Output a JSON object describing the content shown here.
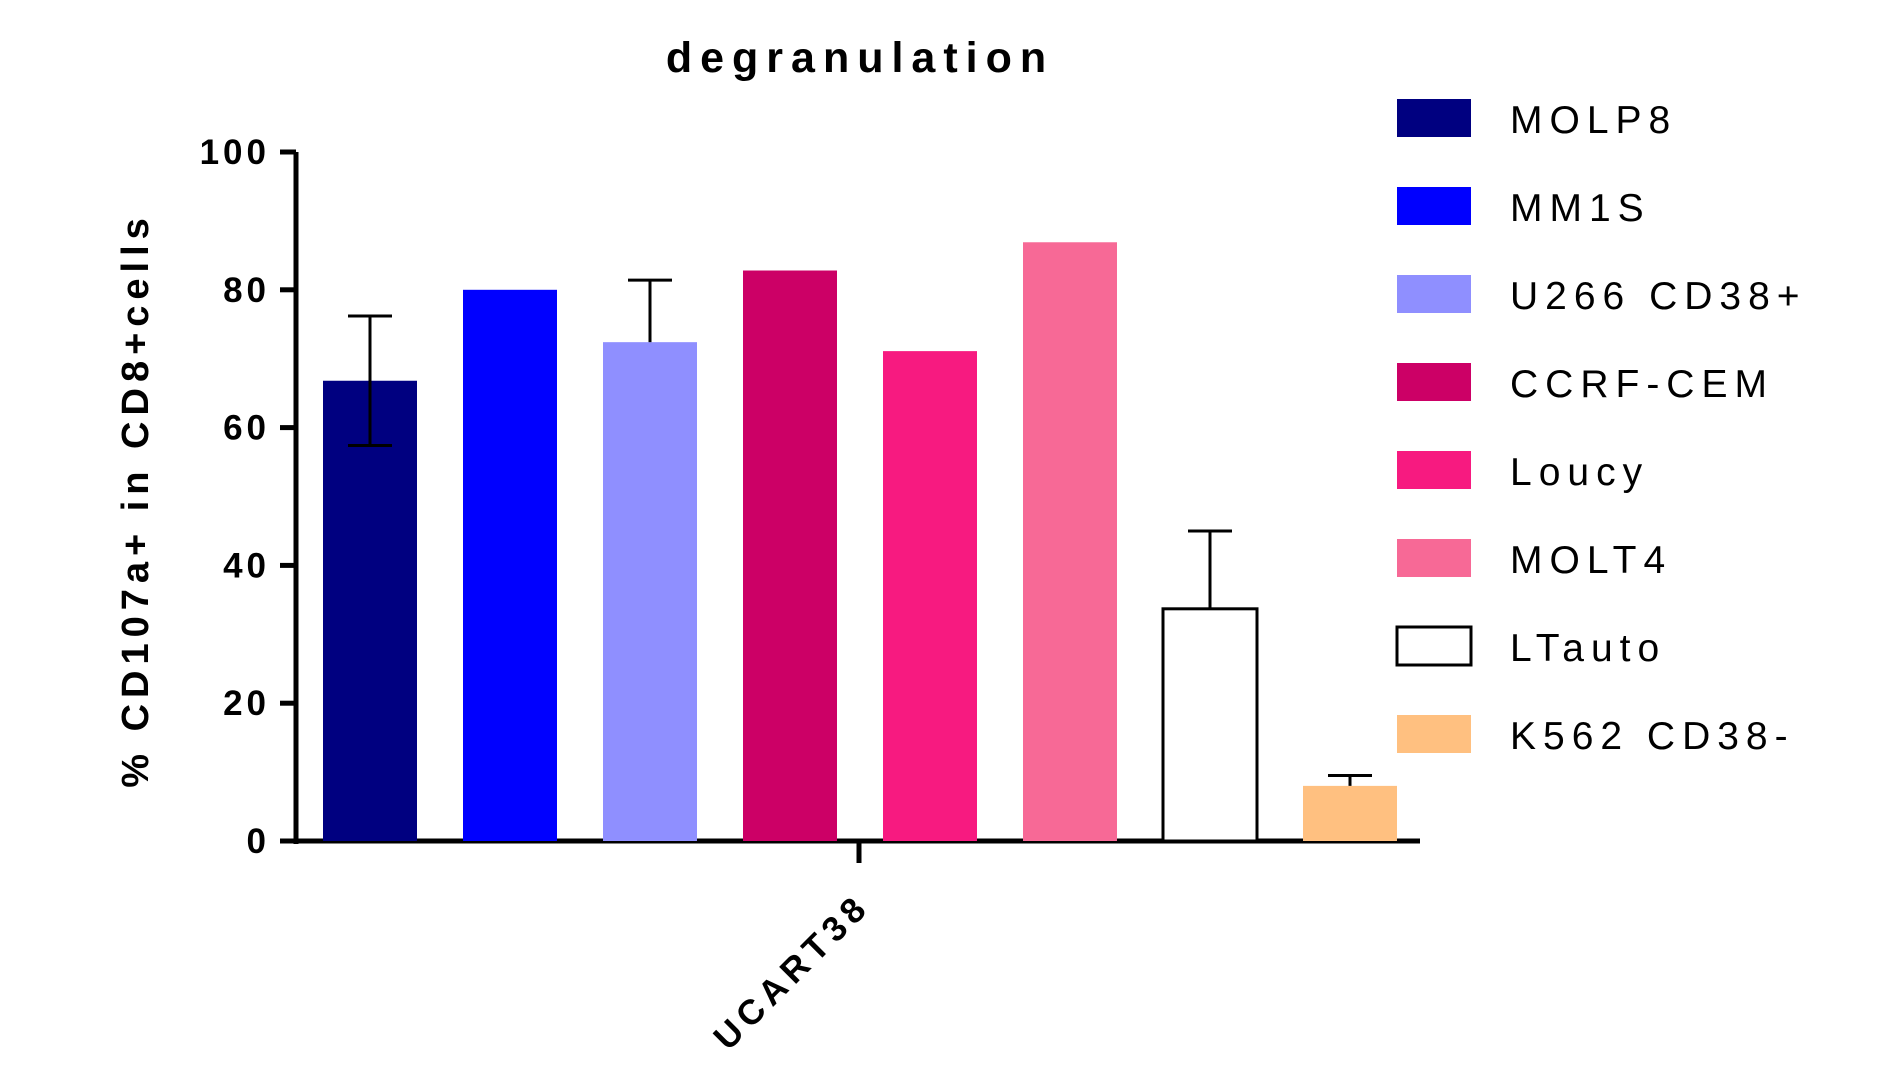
{
  "chart_data": {
    "type": "bar",
    "title": "degranulation",
    "xlabel": "",
    "ylabel": "% CD107a+ in CD8+cells",
    "ylim": [
      0,
      100
    ],
    "yticks": [
      "0",
      "20",
      "40",
      "60",
      "80",
      "100"
    ],
    "categories": [
      "UCART38"
    ],
    "legend_position": "right",
    "grid": false,
    "series": [
      {
        "name": "MOLP8",
        "values": [
          66.8
        ],
        "error": [
          9.4
        ],
        "color": "#000080",
        "hollow": false
      },
      {
        "name": "MM1S",
        "values": [
          80.0
        ],
        "error": null,
        "color": "#0000FF",
        "hollow": false
      },
      {
        "name": "U266 CD38+",
        "values": [
          72.4
        ],
        "error": [
          9.0
        ],
        "color": "#8F8FFF",
        "hollow": false
      },
      {
        "name": "CCRF-CEM",
        "values": [
          82.8
        ],
        "error": null,
        "color": "#CC0066",
        "hollow": false
      },
      {
        "name": "Loucy",
        "values": [
          71.1
        ],
        "error": null,
        "color": "#F71A80",
        "hollow": false
      },
      {
        "name": "MOLT4",
        "values": [
          86.9
        ],
        "error": null,
        "color": "#F76996",
        "hollow": false
      },
      {
        "name": "LTauto",
        "values": [
          33.7
        ],
        "error": [
          11.3
        ],
        "color": "#FFFFFF",
        "hollow": true
      },
      {
        "name": "K562 CD38-",
        "values": [
          8.0
        ],
        "error": [
          1.5
        ],
        "color": "#FFC080",
        "hollow": false
      }
    ]
  }
}
